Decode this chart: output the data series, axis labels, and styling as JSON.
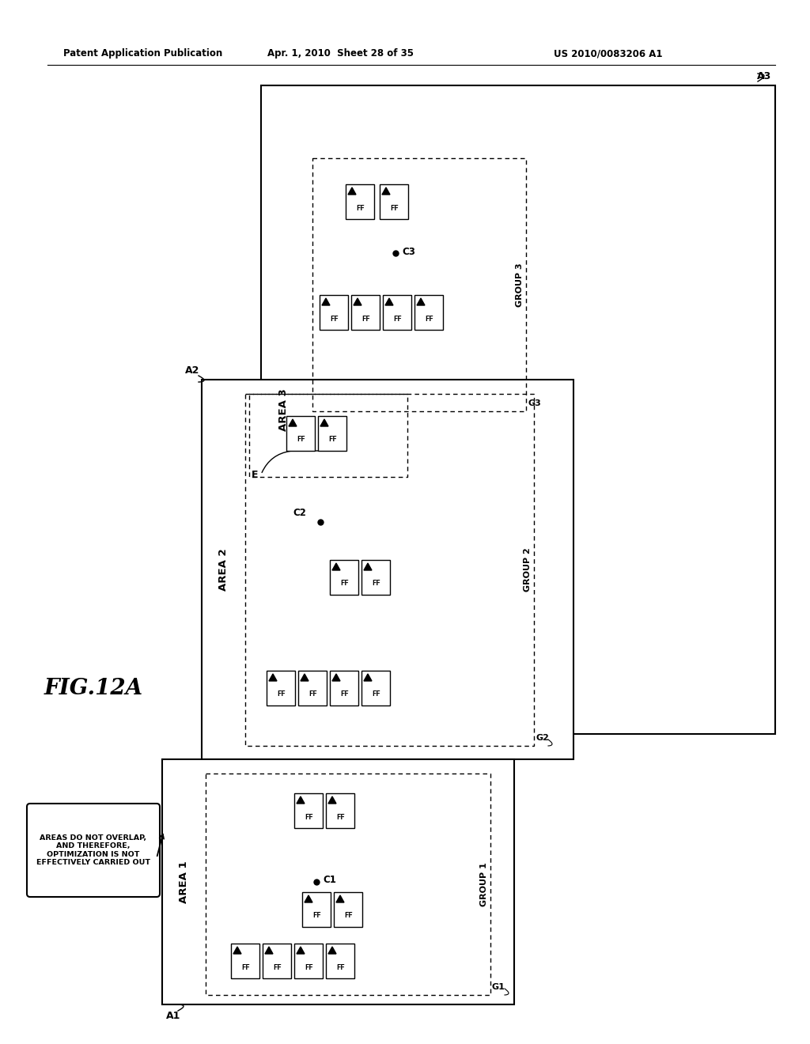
{
  "header_left": "Patent Application Publication",
  "header_mid": "Apr. 1, 2010  Sheet 28 of 35",
  "header_right": "US 2010/0083206 A1",
  "bg_color": "#ffffff",
  "fig_label": "FIG.12A",
  "callout_text": "AREAS DO NOT OVERLAP,\nAND THEREFORE,\nOPTIMIZATION IS NOT\nEFFECTIVELY CARRIED OUT"
}
